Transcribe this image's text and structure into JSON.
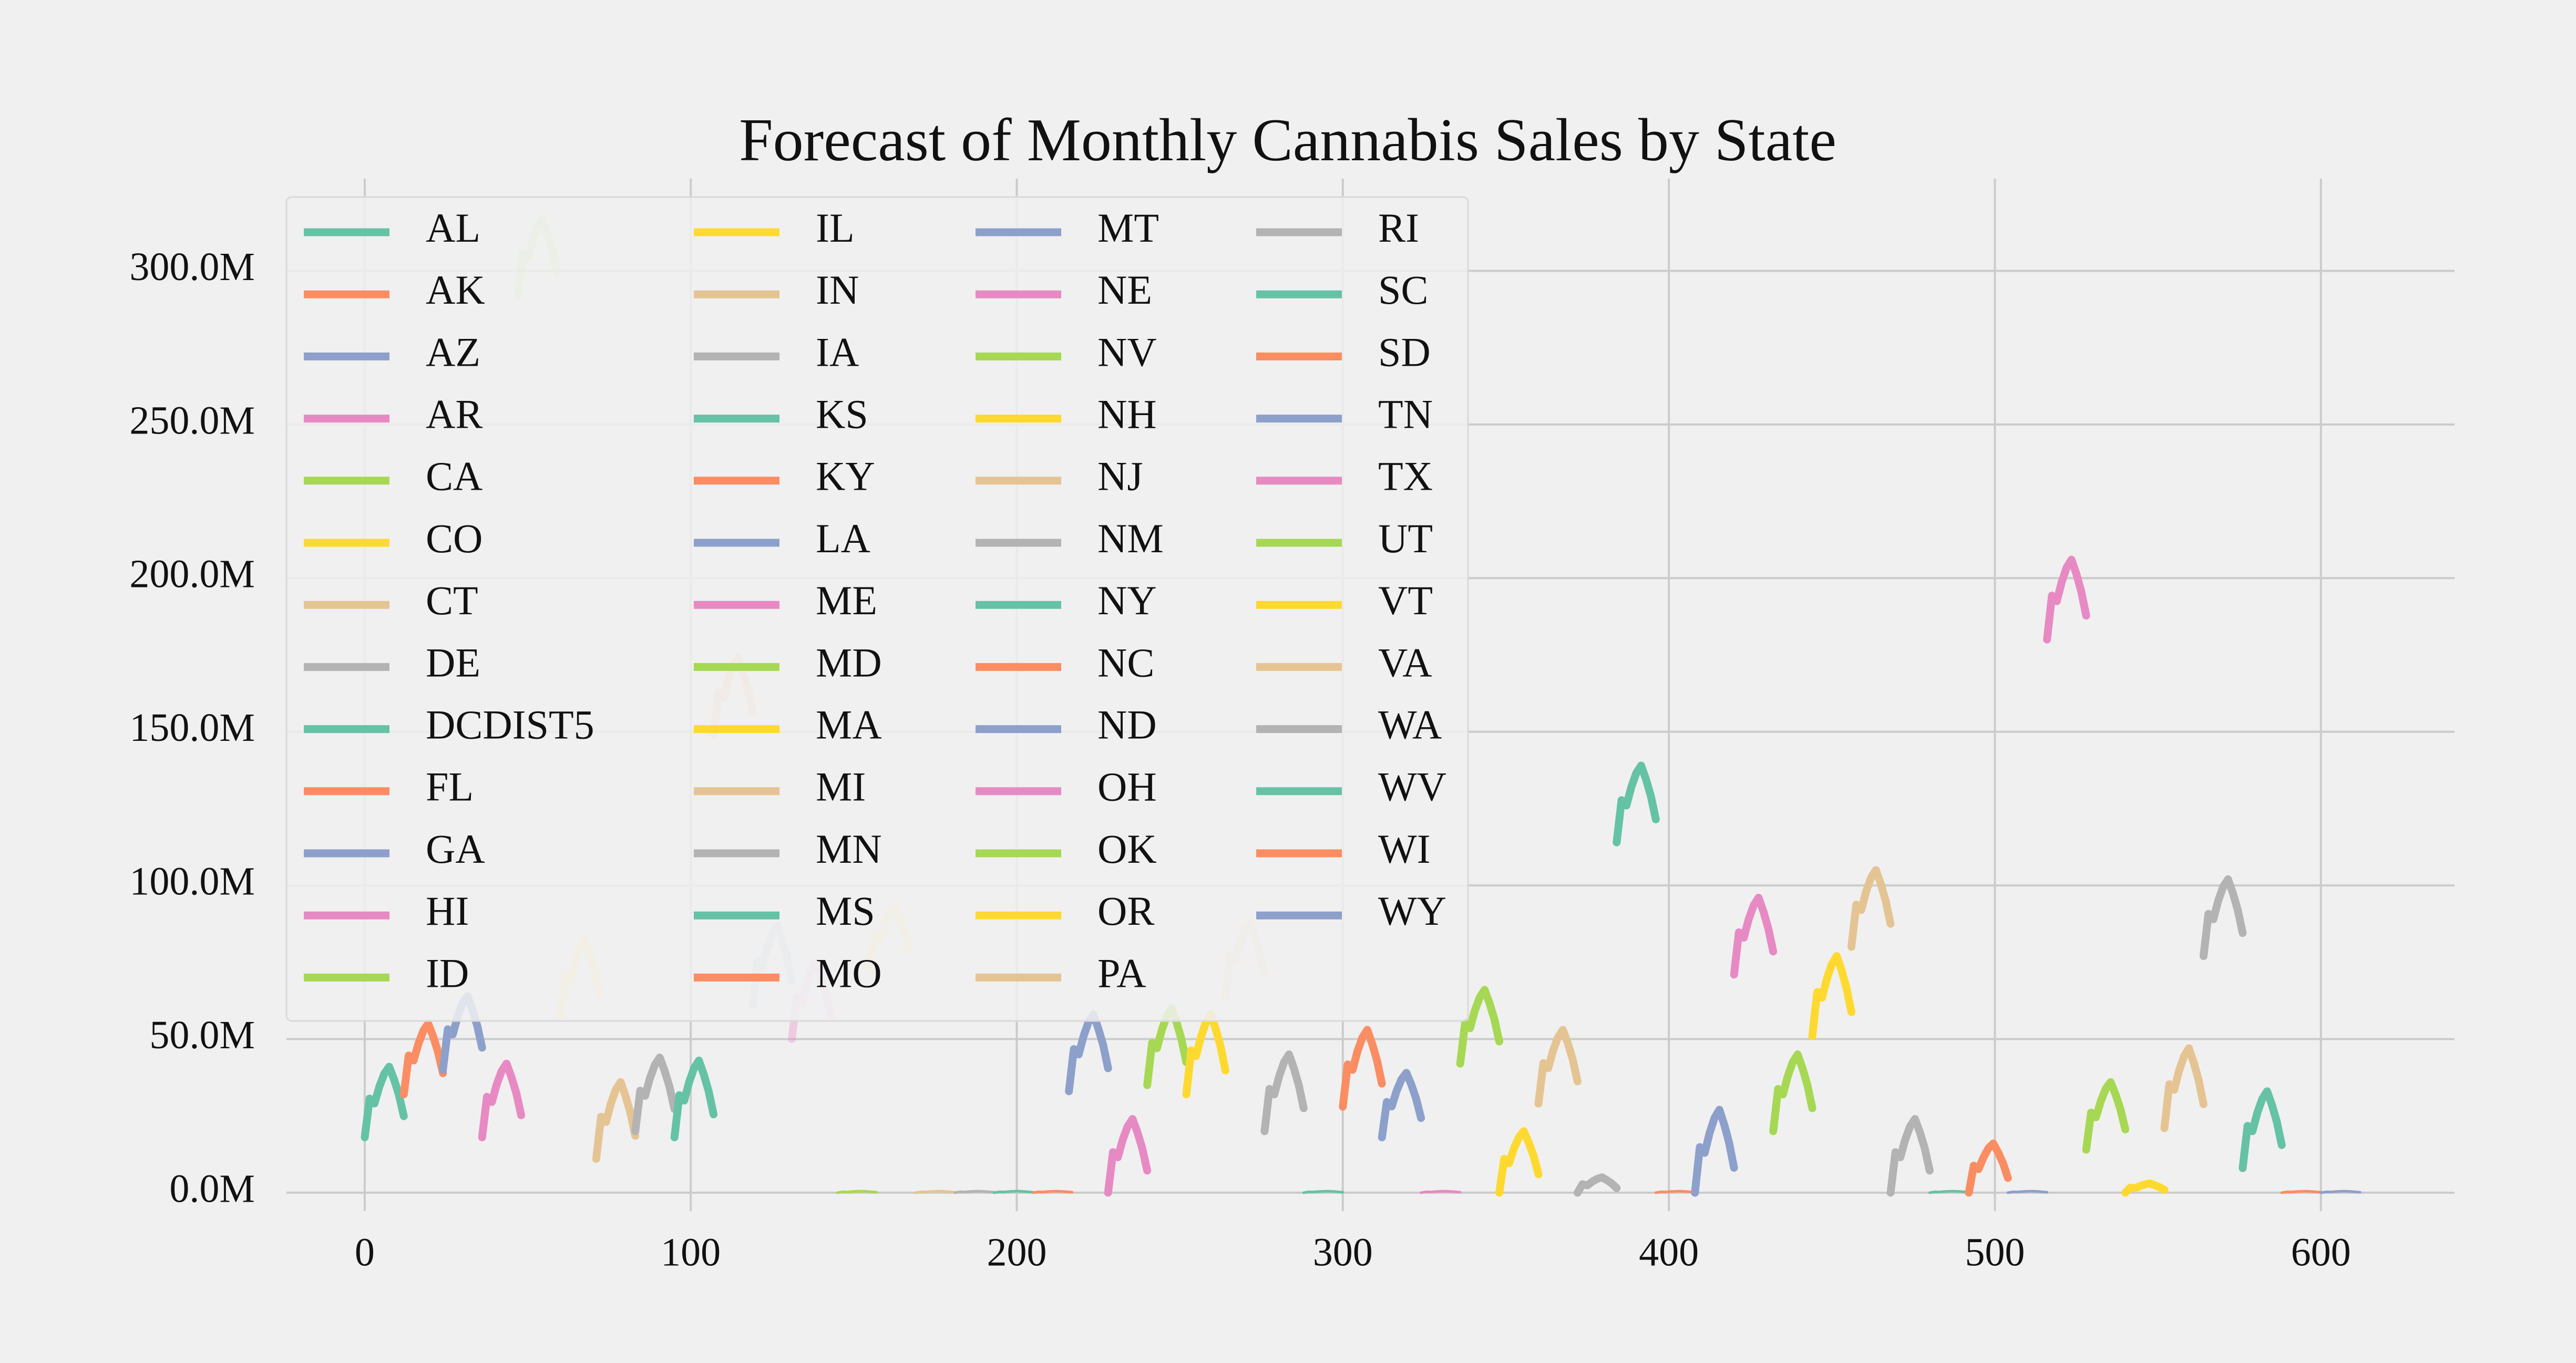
{
  "chart_data": {
    "type": "line",
    "title": "Forecast of Monthly Cannabis Sales by State",
    "xlabel": "",
    "ylabel": "",
    "xlim": [
      -24,
      641
    ],
    "ylim": [
      -6,
      330
    ],
    "x_ticks": [
      0,
      100,
      200,
      300,
      400,
      500,
      600
    ],
    "y_ticks": [
      0,
      50,
      100,
      150,
      200,
      250,
      300
    ],
    "y_tick_labels": [
      "0.0M",
      "50.0M",
      "100.0M",
      "150.0M",
      "200.0M",
      "250.0M",
      "300.0M"
    ],
    "grid": true,
    "legend": {
      "placement": "upper-left",
      "columns": 4
    },
    "palette": [
      "#66c2a5",
      "#fc8d62",
      "#8da0cb",
      "#e78ac3",
      "#a6d854",
      "#ffd92f",
      "#e5c494",
      "#b3b3b3"
    ],
    "series_shape": [
      0,
      0.55,
      0.48,
      0.72,
      0.9,
      1.0,
      0.82,
      0.6,
      0.3
    ],
    "series": [
      {
        "name": "AL",
        "x_start": 0,
        "base": 18,
        "peak": 41,
        "fade": false
      },
      {
        "name": "AK",
        "x_start": 12,
        "base": 32,
        "peak": 55,
        "fade": false
      },
      {
        "name": "AZ",
        "x_start": 24,
        "base": 40,
        "peak": 64,
        "fade": false
      },
      {
        "name": "AR",
        "x_start": 36,
        "base": 18,
        "peak": 42,
        "fade": false
      },
      {
        "name": "CA",
        "x_start": 47,
        "base": 292,
        "peak": 317,
        "fade": true
      },
      {
        "name": "CO",
        "x_start": 60,
        "base": 57,
        "peak": 82,
        "fade": true
      },
      {
        "name": "CT",
        "x_start": 71,
        "base": 11,
        "peak": 36,
        "fade": false
      },
      {
        "name": "DE",
        "x_start": 83,
        "base": 20,
        "peak": 44,
        "fade": false
      },
      {
        "name": "DCDIST5",
        "x_start": 95,
        "base": 18,
        "peak": 43,
        "fade": false
      },
      {
        "name": "FL",
        "x_start": 107,
        "base": 149,
        "peak": 174,
        "fade": true
      },
      {
        "name": "GA",
        "x_start": 119,
        "base": 61,
        "peak": 87,
        "fade": true
      },
      {
        "name": "HI",
        "x_start": 131,
        "base": 50,
        "peak": 75,
        "fade": true
      },
      {
        "name": "ID",
        "x_start": 145,
        "base": 0,
        "peak": 0.5,
        "fade": false
      },
      {
        "name": "IL",
        "x_start": 155,
        "base": 73,
        "peak": 93,
        "fade": true
      },
      {
        "name": "IN",
        "x_start": 169,
        "base": 0,
        "peak": 0.5,
        "fade": false
      },
      {
        "name": "IA",
        "x_start": 181,
        "base": 0,
        "peak": 0.5,
        "fade": false
      },
      {
        "name": "KS",
        "x_start": 193,
        "base": 0,
        "peak": 0.5,
        "fade": false
      },
      {
        "name": "KY",
        "x_start": 205,
        "base": 0,
        "peak": 0.5,
        "fade": false
      },
      {
        "name": "LA",
        "x_start": 216,
        "base": 33,
        "peak": 58,
        "fade": false
      },
      {
        "name": "ME",
        "x_start": 228,
        "base": 0,
        "peak": 24,
        "fade": false
      },
      {
        "name": "MD",
        "x_start": 240,
        "base": 35,
        "peak": 60,
        "fade": false
      },
      {
        "name": "MA",
        "x_start": 252,
        "base": 32,
        "peak": 58,
        "fade": false
      },
      {
        "name": "MI",
        "x_start": 264,
        "base": 64,
        "peak": 88,
        "fade": true
      },
      {
        "name": "MN",
        "x_start": 276,
        "base": 20,
        "peak": 45,
        "fade": false
      },
      {
        "name": "MS",
        "x_start": 288,
        "base": 0,
        "peak": 0.5,
        "fade": false
      },
      {
        "name": "MO",
        "x_start": 300,
        "base": 28,
        "peak": 53,
        "fade": false
      },
      {
        "name": "MT",
        "x_start": 312,
        "base": 18,
        "peak": 39,
        "fade": false
      },
      {
        "name": "NE",
        "x_start": 324,
        "base": 0,
        "peak": 0.5,
        "fade": false
      },
      {
        "name": "NV",
        "x_start": 336,
        "base": 42,
        "peak": 66,
        "fade": false
      },
      {
        "name": "NH",
        "x_start": 348,
        "base": 0,
        "peak": 20,
        "fade": false
      },
      {
        "name": "NJ",
        "x_start": 360,
        "base": 29,
        "peak": 53,
        "fade": false
      },
      {
        "name": "NM",
        "x_start": 372,
        "base": 0,
        "peak": 5,
        "fade": false
      },
      {
        "name": "NY",
        "x_start": 384,
        "base": 114,
        "peak": 139,
        "fade": false
      },
      {
        "name": "NC",
        "x_start": 396,
        "base": 0,
        "peak": 0.5,
        "fade": false
      },
      {
        "name": "ND",
        "x_start": 408,
        "base": 0,
        "peak": 27,
        "fade": false
      },
      {
        "name": "OH",
        "x_start": 420,
        "base": 71,
        "peak": 96,
        "fade": false
      },
      {
        "name": "OK",
        "x_start": 432,
        "base": 20,
        "peak": 45,
        "fade": false
      },
      {
        "name": "OR",
        "x_start": 444,
        "base": 51,
        "peak": 77,
        "fade": false
      },
      {
        "name": "PA",
        "x_start": 456,
        "base": 80,
        "peak": 105,
        "fade": false
      },
      {
        "name": "RI",
        "x_start": 468,
        "base": 0,
        "peak": 24,
        "fade": false
      },
      {
        "name": "SC",
        "x_start": 480,
        "base": 0,
        "peak": 0.5,
        "fade": false
      },
      {
        "name": "SD",
        "x_start": 492,
        "base": 0,
        "peak": 16,
        "fade": false
      },
      {
        "name": "TN",
        "x_start": 504,
        "base": 0,
        "peak": 0.5,
        "fade": false
      },
      {
        "name": "TX",
        "x_start": 516,
        "base": 180,
        "peak": 206,
        "fade": false
      },
      {
        "name": "UT",
        "x_start": 528,
        "base": 14,
        "peak": 36,
        "fade": false
      },
      {
        "name": "VT",
        "x_start": 540,
        "base": 0,
        "peak": 3,
        "fade": false
      },
      {
        "name": "VA",
        "x_start": 552,
        "base": 21,
        "peak": 47,
        "fade": false
      },
      {
        "name": "WA",
        "x_start": 564,
        "base": 77,
        "peak": 102,
        "fade": false
      },
      {
        "name": "WV",
        "x_start": 576,
        "base": 8,
        "peak": 33,
        "fade": false
      },
      {
        "name": "WI",
        "x_start": 588,
        "base": 0,
        "peak": 0.5,
        "fade": false
      },
      {
        "name": "WY",
        "x_start": 600,
        "base": 0,
        "peak": 0.5,
        "fade": false
      }
    ]
  }
}
